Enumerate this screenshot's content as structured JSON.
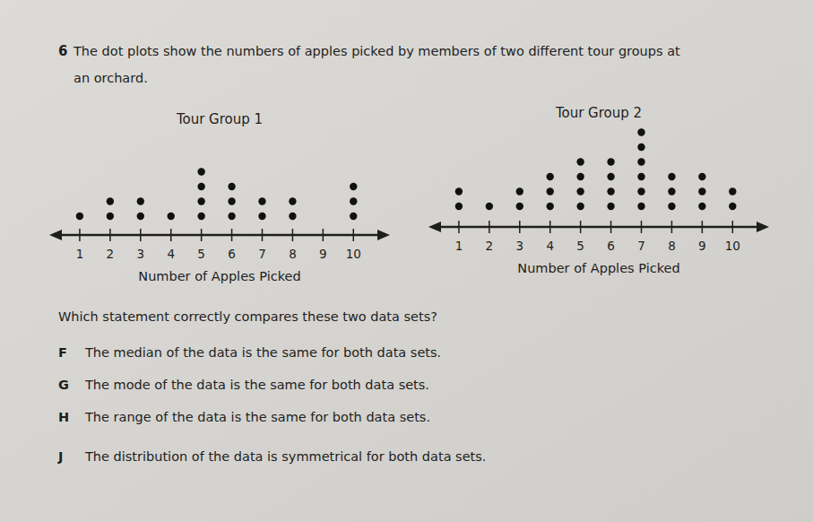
{
  "question": {
    "number": "6",
    "prompt_lines": [
      "The dot plots show the numbers of apples picked by members of two different tour groups at",
      "an orchard."
    ],
    "ask": "Which statement correctly compares these two data sets?",
    "options": [
      {
        "letter": "F",
        "text": "The median of the data is the same for both data sets."
      },
      {
        "letter": "G",
        "text": "The mode of the data is the same for both data sets."
      },
      {
        "letter": "H",
        "text": "The range of the data is the same for both data sets."
      },
      {
        "letter": "J",
        "text": "The distribution of the data is symmetrical for both data sets."
      }
    ]
  },
  "chart_data": [
    {
      "type": "dot",
      "title": "Tour Group 1",
      "x_label": "Number of Apples Picked",
      "x": [
        1,
        2,
        3,
        4,
        5,
        6,
        7,
        8,
        9,
        10
      ],
      "values": [
        1,
        2,
        2,
        1,
        4,
        3,
        2,
        2,
        0,
        3
      ],
      "xlim": [
        0,
        11.2
      ],
      "xticks": [
        1,
        2,
        3,
        4,
        5,
        6,
        7,
        8,
        9,
        10
      ],
      "color": "#111111"
    },
    {
      "type": "dot",
      "title": "Tour Group 2",
      "x_label": "Number of Apples Picked",
      "x": [
        1,
        2,
        3,
        4,
        5,
        6,
        7,
        8,
        9,
        10
      ],
      "values": [
        2,
        1,
        2,
        3,
        4,
        4,
        6,
        3,
        3,
        2
      ],
      "xlim": [
        0,
        11.2
      ],
      "xticks": [
        1,
        2,
        3,
        4,
        5,
        6,
        7,
        8,
        9,
        10
      ],
      "color": "#111111"
    }
  ]
}
